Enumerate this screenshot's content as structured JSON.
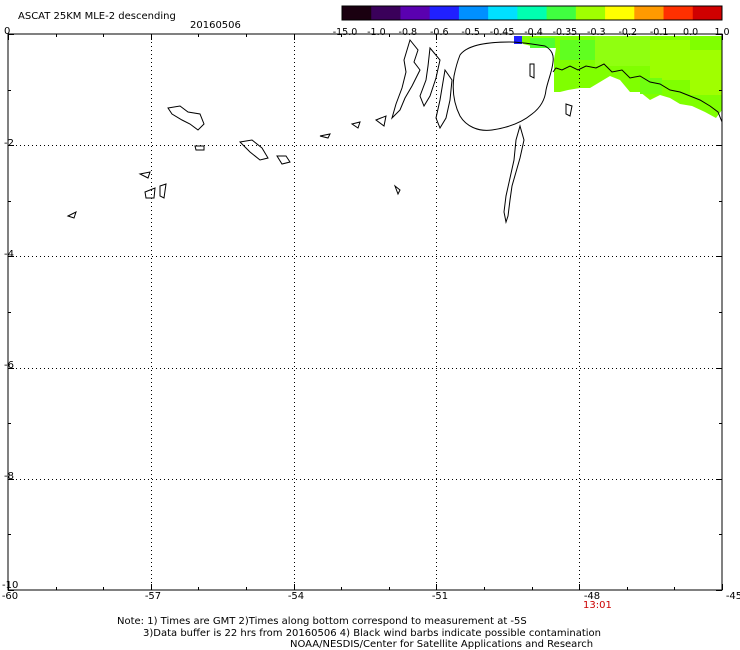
{
  "header": {
    "title": "ASCAT 25KM MLE-2 descending",
    "date": "20160506"
  },
  "colorbar": {
    "labels": [
      "-15.0",
      "-1.0",
      "-0.8",
      "-0.6",
      "-0.5",
      "-0.45",
      "-0.4",
      "-0.35",
      "-0.3",
      "-0.2",
      "-0.1",
      "0.0",
      "1.0"
    ],
    "colors": [
      "#1a0010",
      "#3a005a",
      "#5a00b0",
      "#2020ff",
      "#0090ff",
      "#00e0ff",
      "#00ffb0",
      "#40ff40",
      "#a0ff00",
      "#ffff00",
      "#ff9a00",
      "#ff3000",
      "#d00000"
    ]
  },
  "map": {
    "y_axis_labels": [
      "0",
      "-2",
      "-4",
      "-6",
      "-8",
      "-10"
    ],
    "x_axis_labels": [
      "-60",
      "-57",
      "-54",
      "-51",
      "-48",
      "-45"
    ],
    "lat_range": [
      -10,
      0
    ],
    "lon_range": [
      -60,
      -45
    ],
    "grid": "dotted",
    "data_color": "#80ff00",
    "time_label": "13:01"
  },
  "footer": {
    "note_line1": "Note: 1) Times are GMT 2)Times along bottom correspond to measurement at -5S",
    "note_line2": "3)Data buffer is 22 hrs from 20160506 4) Black wind barbs indicate possible contamination",
    "credit": "NOAA/NESDIS/Center for Satellite Applications and Research"
  }
}
